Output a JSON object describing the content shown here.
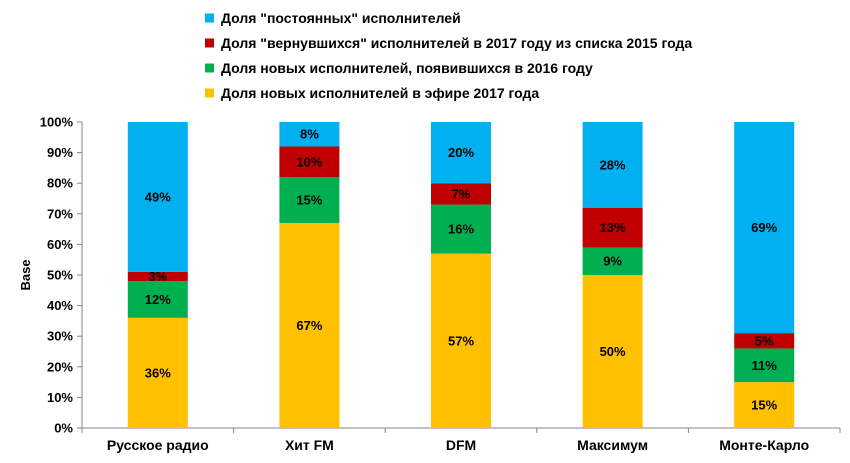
{
  "chart_data": {
    "type": "bar",
    "stacked": true,
    "categories": [
      "Русское радио",
      "Хит FM",
      "DFM",
      "Максимум",
      "Монте-Карло"
    ],
    "series": [
      {
        "name": "Доля новых исполнителей в эфире 2017 года",
        "color": "#FFC000",
        "values": [
          36,
          67,
          57,
          50,
          15
        ]
      },
      {
        "name": "Доля новых исполнителей, появившихся  в 2016 году",
        "color": "#00B050",
        "values": [
          12,
          15,
          16,
          9,
          11
        ]
      },
      {
        "name": "Доля \"вернувшихся\"  исполнителей в 2017 году из списка 2015 года",
        "color": "#C00000",
        "values": [
          3,
          10,
          7,
          13,
          5
        ]
      },
      {
        "name": "Доля \"постоянных\"  исполнителей",
        "color": "#00B0F0",
        "values": [
          49,
          8,
          20,
          28,
          69
        ]
      }
    ],
    "legend_order": [
      3,
      2,
      1,
      0
    ],
    "data_labels": [
      [
        "36%",
        "12%",
        "3%",
        "49%"
      ],
      [
        "67%",
        "15%",
        "10%",
        "8%"
      ],
      [
        "57%",
        "16%",
        "7%",
        "20%"
      ],
      [
        "50%",
        "9%",
        "13%",
        "28%"
      ],
      [
        "15%",
        "11%",
        "5%",
        "69%"
      ]
    ],
    "ylabel": "Base",
    "ylim": [
      0,
      100
    ],
    "yticks": [
      0,
      10,
      20,
      30,
      40,
      50,
      60,
      70,
      80,
      90,
      100
    ],
    "ytick_labels": [
      "0%",
      "10%",
      "20%",
      "30%",
      "40%",
      "50%",
      "60%",
      "70%",
      "80%",
      "90%",
      "100%"
    ],
    "legend_position": "top",
    "grid": false
  }
}
